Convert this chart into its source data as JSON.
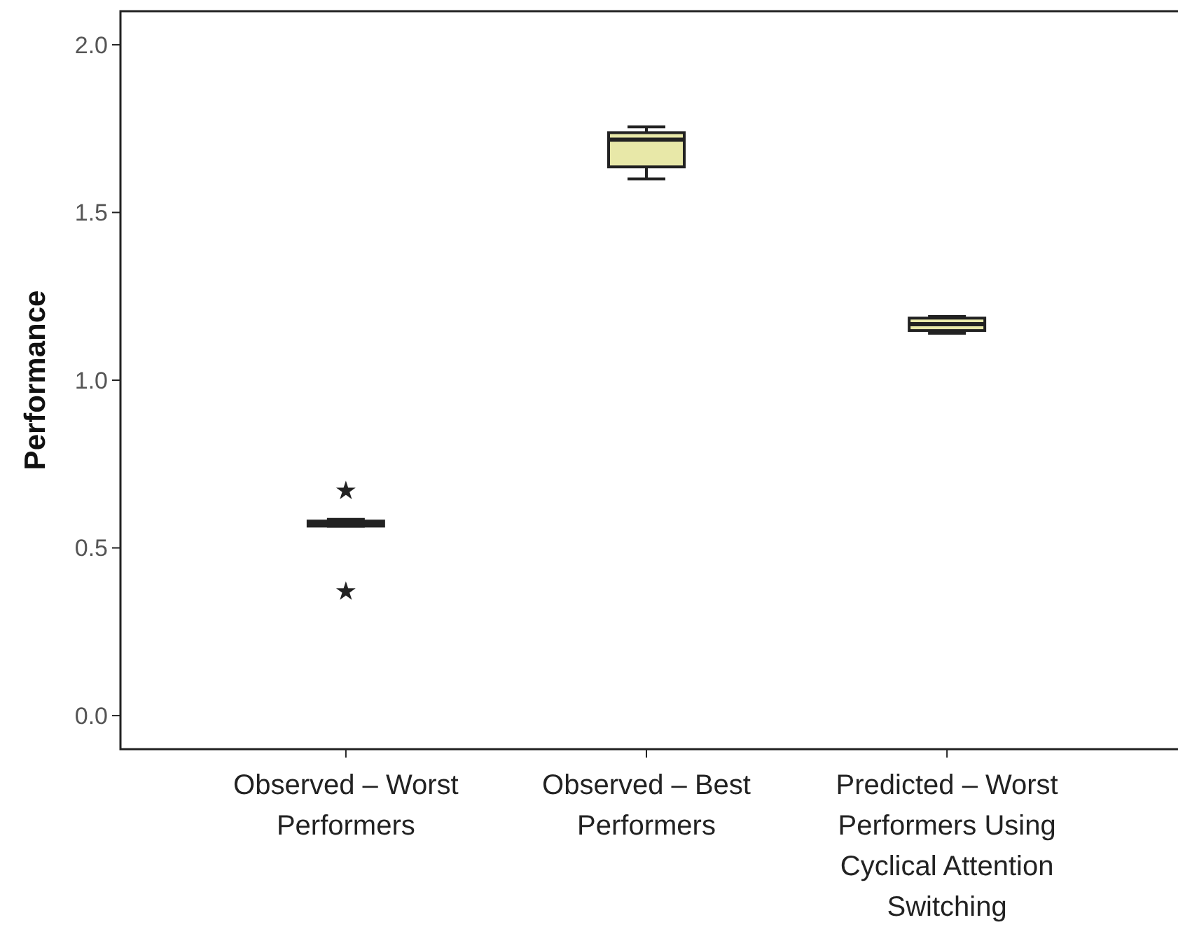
{
  "chart_data": {
    "type": "box",
    "ylabel": "Performance",
    "categories": [
      "Observed – Worst Performers",
      "Observed – Best Performers",
      "Predicted – Worst Performers Using Cyclical Attention Switching"
    ],
    "color": "#e8e8a8",
    "boxes": [
      {
        "low": 0.565,
        "q1": 0.565,
        "median": 0.572,
        "q3": 0.58,
        "high": 0.585,
        "outliers": [
          0.67,
          0.37
        ]
      },
      {
        "low": 1.6,
        "q1": 1.636,
        "median": 1.717,
        "q3": 1.738,
        "high": 1.755
      },
      {
        "low": 1.14,
        "q1": 1.148,
        "median": 1.167,
        "q3": 1.185,
        "high": 1.19
      }
    ],
    "ylim": [
      -0.1,
      2.1
    ],
    "yticks": [
      {
        "value": 0,
        "label": "0.0"
      },
      {
        "value": 0.5,
        "label": "0.5"
      },
      {
        "value": 1,
        "label": "1.0"
      },
      {
        "value": 1.5,
        "label": "1.5"
      },
      {
        "value": 2,
        "label": "2.0"
      }
    ],
    "grid": false,
    "marker": "star"
  }
}
